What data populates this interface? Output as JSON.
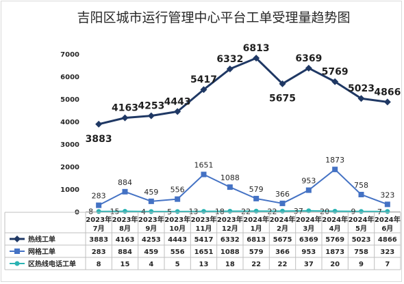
{
  "chart_data": {
    "type": "line",
    "title": "吉阳区城市运行管理中心平台工单受理量趋势图",
    "categories": [
      [
        "2023年",
        "7月"
      ],
      [
        "2023年",
        "8月"
      ],
      [
        "2023年",
        "9月"
      ],
      [
        "2023年",
        "10月"
      ],
      [
        "2023年",
        "11月"
      ],
      [
        "2023年",
        "12月"
      ],
      [
        "2024年",
        "1月"
      ],
      [
        "2024年",
        "2月"
      ],
      [
        "2024年",
        "3月"
      ],
      [
        "2024年",
        "4月"
      ],
      [
        "2024年",
        "5月"
      ],
      [
        "2024年",
        "6月"
      ]
    ],
    "ylim": [
      0,
      7000
    ],
    "yticks": [
      0,
      1000,
      2000,
      3000,
      4000,
      5000,
      6000,
      7000
    ],
    "grid": false,
    "legend": "data-table-bottom",
    "series": [
      {
        "name": "热线工单",
        "color": "#1f3864",
        "marker": "diamond",
        "values": [
          3883,
          4163,
          4253,
          4443,
          5417,
          6332,
          6813,
          5675,
          6369,
          5769,
          5023,
          4866
        ]
      },
      {
        "name": "网格工单",
        "color": "#4472c4",
        "marker": "square",
        "values": [
          283,
          884,
          459,
          556,
          1651,
          1088,
          579,
          366,
          953,
          1873,
          758,
          323
        ]
      },
      {
        "name": "区热线电话工单",
        "color": "#2bb3b3",
        "marker": "circle",
        "values": [
          8,
          15,
          4,
          5,
          13,
          18,
          22,
          22,
          37,
          20,
          9,
          7
        ]
      }
    ]
  }
}
